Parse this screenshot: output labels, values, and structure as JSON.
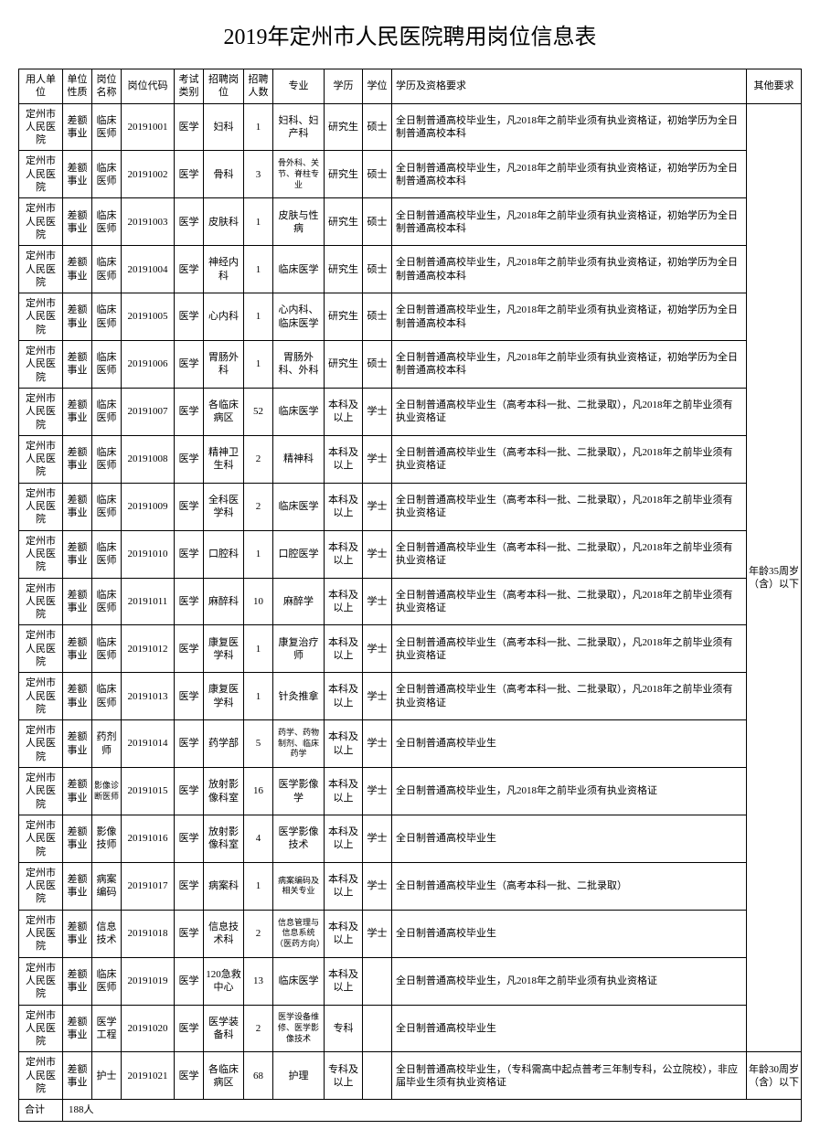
{
  "title": "2019年定州市人民医院聘用岗位信息表",
  "headers": {
    "employer": "用人单位",
    "nature": "单位性质",
    "posname": "岗位名称",
    "code": "岗位代码",
    "examtype": "考试类别",
    "post": "招聘岗位",
    "count": "招聘人数",
    "major": "专业",
    "edu": "学历",
    "degree": "学位",
    "req": "学历及资格要求",
    "other": "其他要求"
  },
  "common": {
    "employer": "定州市人民医院",
    "nature": "差额事业",
    "posname_doctor": "临床医师",
    "examtype": "医学",
    "edu_grad": "研究生",
    "edu_bachelor": "本科及以上",
    "edu_zhuan": "专科及以上",
    "edu_zhuan2": "专科",
    "degree_master": "硕士",
    "degree_bachelor": "学士",
    "req_grad": "全日制普通高校毕业生，凡2018年之前毕业须有执业资格证，初始学历为全日制普通高校本科",
    "req_bachelor": "全日制普通高校毕业生（高考本科一批、二批录取），凡2018年之前毕业须有执业资格证",
    "req_simple": "全日制普通高校毕业生",
    "req_qual": "全日制普通高校毕业生，凡2018年之前毕业须有执业资格证",
    "req_batch": "全日制普通高校毕业生（高考本科一批、二批录取）",
    "other_35": "年龄35周岁（含）以下",
    "other_30": "年龄30周岁（含）以下"
  },
  "rows": [
    {
      "code": "20191001",
      "post": "妇科",
      "count": "1",
      "major": "妇科、妇产科",
      "edu": "研究生",
      "degree": "硕士",
      "req_key": "req_grad",
      "posname": "临床医师"
    },
    {
      "code": "20191002",
      "post": "骨科",
      "count": "3",
      "major": "骨外科、关节、脊柱专业",
      "edu": "研究生",
      "degree": "硕士",
      "req_key": "req_grad",
      "posname": "临床医师",
      "major_small": true
    },
    {
      "code": "20191003",
      "post": "皮肤科",
      "count": "1",
      "major": "皮肤与性病",
      "edu": "研究生",
      "degree": "硕士",
      "req_key": "req_grad",
      "posname": "临床医师"
    },
    {
      "code": "20191004",
      "post": "神经内科",
      "count": "1",
      "major": "临床医学",
      "edu": "研究生",
      "degree": "硕士",
      "req_key": "req_grad",
      "posname": "临床医师"
    },
    {
      "code": "20191005",
      "post": "心内科",
      "count": "1",
      "major": "心内科、临床医学",
      "edu": "研究生",
      "degree": "硕士",
      "req_key": "req_grad",
      "posname": "临床医师"
    },
    {
      "code": "20191006",
      "post": "胃肠外科",
      "count": "1",
      "major": "胃肠外科、外科",
      "edu": "研究生",
      "degree": "硕士",
      "req_key": "req_grad",
      "posname": "临床医师"
    },
    {
      "code": "20191007",
      "post": "各临床病区",
      "count": "52",
      "major": "临床医学",
      "edu": "本科及以上",
      "degree": "学士",
      "req_key": "req_bachelor",
      "posname": "临床医师"
    },
    {
      "code": "20191008",
      "post": "精神卫生科",
      "count": "2",
      "major": "精神科",
      "edu": "本科及以上",
      "degree": "学士",
      "req_key": "req_bachelor",
      "posname": "临床医师"
    },
    {
      "code": "20191009",
      "post": "全科医学科",
      "count": "2",
      "major": "临床医学",
      "edu": "本科及以上",
      "degree": "学士",
      "req_key": "req_bachelor",
      "posname": "临床医师"
    },
    {
      "code": "20191010",
      "post": "口腔科",
      "count": "1",
      "major": "口腔医学",
      "edu": "本科及以上",
      "degree": "学士",
      "req_key": "req_bachelor",
      "posname": "临床医师"
    },
    {
      "code": "20191011",
      "post": "麻醉科",
      "count": "10",
      "major": "麻醉学",
      "edu": "本科及以上",
      "degree": "学士",
      "req_key": "req_bachelor",
      "posname": "临床医师"
    },
    {
      "code": "20191012",
      "post": "康复医学科",
      "count": "1",
      "major": "康复治疗师",
      "edu": "本科及以上",
      "degree": "学士",
      "req_key": "req_bachelor",
      "posname": "临床医师"
    },
    {
      "code": "20191013",
      "post": "康复医学科",
      "count": "1",
      "major": "针灸推拿",
      "edu": "本科及以上",
      "degree": "学士",
      "req_key": "req_bachelor",
      "posname": "临床医师"
    },
    {
      "code": "20191014",
      "post": "药学部",
      "count": "5",
      "major": "药学、药物制剂、临床药学",
      "edu": "本科及以上",
      "degree": "学士",
      "req_key": "req_simple",
      "posname": "药剂师",
      "major_small": true
    },
    {
      "code": "20191015",
      "post": "放射影像科室",
      "count": "16",
      "major": "医学影像学",
      "edu": "本科及以上",
      "degree": "学士",
      "req_key": "req_qual",
      "posname": "影像诊断医师",
      "posname_small": true
    },
    {
      "code": "20191016",
      "post": "放射影像科室",
      "count": "4",
      "major": "医学影像技术",
      "edu": "本科及以上",
      "degree": "学士",
      "req_key": "req_simple",
      "posname": "影像技师"
    },
    {
      "code": "20191017",
      "post": "病案科",
      "count": "1",
      "major": "病案编码及相关专业",
      "edu": "本科及以上",
      "degree": "学士",
      "req_key": "req_batch",
      "posname": "病案编码",
      "major_small": true
    },
    {
      "code": "20191018",
      "post": "信息技术科",
      "count": "2",
      "major": "信息管理与信息系统（医药方向）",
      "edu": "本科及以上",
      "degree": "学士",
      "req_key": "req_simple",
      "posname": "信息技术",
      "major_small": true
    },
    {
      "code": "20191019",
      "post": "120急救中心",
      "count": "13",
      "major": "临床医学",
      "edu": "本科及以上",
      "degree": "",
      "req_key": "req_qual",
      "posname": "临床医师"
    },
    {
      "code": "20191020",
      "post": "医学装备科",
      "count": "2",
      "major": "医学设备维修、医学影像技术",
      "edu": "专科",
      "degree": "",
      "req_key": "req_simple",
      "posname": "医学工程",
      "major_small": true
    }
  ],
  "last_row": {
    "code": "20191021",
    "post": "各临床病区",
    "count": "68",
    "major": "护理",
    "edu": "专科及以上",
    "degree": "",
    "posname": "护士",
    "req": "全日制普通高校毕业生，（专科需高中起点普考三年制专科，公立院校），非应届毕业生须有执业资格证"
  },
  "total": {
    "label": "合计",
    "value": "188人"
  }
}
